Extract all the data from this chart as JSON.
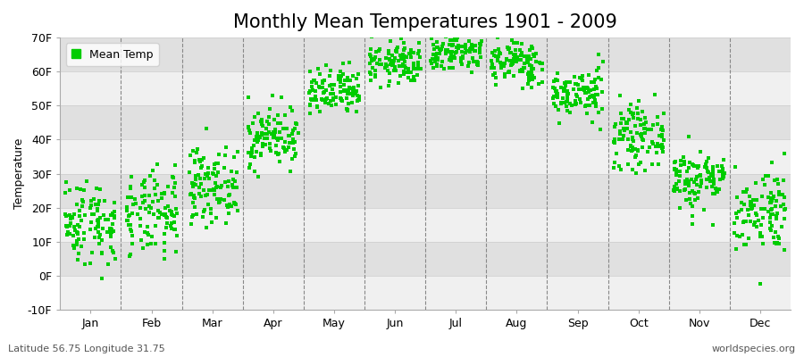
{
  "title": "Monthly Mean Temperatures 1901 - 2009",
  "ylabel": "Temperature",
  "dot_color": "#00cc00",
  "background_color": "#ffffff",
  "plot_background_light": "#f0f0f0",
  "plot_background_dark": "#e0e0e0",
  "ylim": [
    -10,
    70
  ],
  "yticks": [
    -10,
    0,
    10,
    20,
    30,
    40,
    50,
    60,
    70
  ],
  "ytick_labels": [
    "-10F",
    "0F",
    "10F",
    "20F",
    "30F",
    "40F",
    "50F",
    "60F",
    "70F"
  ],
  "month_labels": [
    "Jan",
    "Feb",
    "Mar",
    "Apr",
    "May",
    "Jun",
    "Jul",
    "Aug",
    "Sep",
    "Oct",
    "Nov",
    "Dec"
  ],
  "legend_label": "Mean Temp",
  "footer_left": "Latitude 56.75 Longitude 31.75",
  "footer_right": "worldspecies.org",
  "title_fontsize": 15,
  "axis_label_fontsize": 9,
  "tick_fontsize": 9,
  "footer_fontsize": 8,
  "dot_size": 8,
  "monthly_means_c": [
    -9,
    -8,
    -3,
    5,
    12,
    17,
    19,
    17,
    12,
    5,
    -2,
    -7
  ],
  "monthly_stds_c": [
    3.5,
    3.5,
    3.0,
    2.5,
    2.0,
    1.8,
    1.8,
    1.8,
    2.0,
    2.5,
    2.5,
    3.5
  ],
  "n_years": 109
}
